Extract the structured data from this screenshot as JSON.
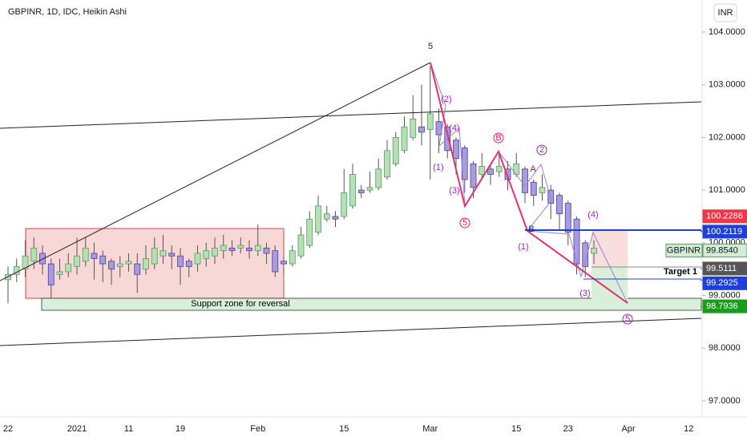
{
  "chart_data": {
    "type": "candlestick",
    "title": "GBPINR, 1D, IDC, Heikin Ashi",
    "currency_button": "INR",
    "categories": [
      "22",
      null,
      null,
      null,
      null,
      null,
      null,
      null,
      "2021",
      null,
      null,
      null,
      null,
      null,
      "11",
      null,
      null,
      null,
      null,
      null,
      "19",
      null,
      null,
      null,
      null,
      null,
      null,
      null,
      null,
      "Feb",
      null,
      null,
      null,
      null,
      null,
      null,
      null,
      null,
      null,
      "15",
      null,
      null,
      null,
      null,
      null,
      null,
      null,
      null,
      null,
      "Mar",
      null,
      null,
      null,
      null,
      null,
      null,
      null,
      null,
      null,
      "15",
      null,
      null,
      null,
      null,
      null,
      "23",
      null,
      null,
      null,
      null,
      null,
      null,
      "Apr",
      null,
      null,
      null,
      null,
      null,
      null,
      "12"
    ],
    "open": [
      99.3,
      99.4,
      99.5,
      99.65,
      99.8,
      99.6,
      99.4,
      99.45,
      99.55,
      99.65,
      99.8,
      99.75,
      99.65,
      99.55,
      99.6,
      99.6,
      99.5,
      99.6,
      99.75,
      99.8,
      99.75,
      99.65,
      99.6,
      99.7,
      99.75,
      99.85,
      99.9,
      99.9,
      99.9,
      99.85,
      99.9,
      99.85,
      99.65,
      99.6,
      99.75,
      99.95,
      100.2,
      100.45,
      100.5,
      100.5,
      100.7,
      101.0,
      101.0,
      101.05,
      101.25,
      101.5,
      101.75,
      102.0,
      102.2,
      102.15,
      102.3,
      102.2,
      101.95,
      101.8,
      101.5,
      101.3,
      101.4,
      101.35,
      101.4,
      101.3,
      101.4,
      101.15,
      100.95,
      101.0,
      100.9,
      100.75,
      100.45,
      100.0,
      99.8,
      null,
      null,
      null,
      null,
      null,
      null,
      null,
      null,
      null,
      null,
      null
    ],
    "high": [
      99.55,
      99.7,
      100.05,
      100.1,
      99.95,
      99.7,
      99.7,
      99.8,
      100.1,
      100.1,
      100.0,
      99.85,
      99.7,
      99.75,
      99.8,
      99.8,
      99.95,
      100.1,
      100.15,
      99.95,
      99.9,
      99.7,
      99.95,
      100.0,
      100.1,
      100.15,
      100.05,
      100.1,
      100.05,
      100.35,
      100.0,
      99.95,
      99.75,
      99.95,
      100.3,
      100.6,
      100.9,
      100.7,
      100.6,
      101.4,
      101.5,
      101.1,
      101.35,
      101.6,
      101.95,
      102.1,
      102.4,
      102.8,
      103.0,
      103.35,
      102.55,
      102.25,
      102.0,
      101.85,
      101.55,
      101.7,
      101.5,
      101.7,
      101.55,
      101.7,
      101.45,
      101.2,
      101.3,
      101.1,
      100.95,
      100.8,
      100.5,
      100.05,
      100.05,
      null,
      null,
      null,
      null,
      null,
      null,
      null,
      null,
      null,
      null,
      null
    ],
    "low": [
      98.85,
      99.25,
      99.35,
      99.5,
      99.4,
      98.95,
      99.3,
      99.35,
      99.4,
      99.55,
      99.3,
      99.25,
      99.2,
      99.35,
      99.45,
      99.05,
      99.4,
      99.5,
      99.6,
      99.5,
      99.2,
      99.35,
      99.45,
      99.55,
      99.6,
      99.7,
      99.75,
      99.8,
      99.7,
      99.75,
      99.6,
      99.35,
      99.4,
      99.55,
      99.7,
      99.9,
      100.15,
      100.4,
      100.3,
      100.45,
      100.65,
      100.85,
      100.95,
      101.0,
      101.2,
      101.45,
      101.7,
      101.95,
      101.85,
      101.2,
      101.7,
      101.6,
      101.3,
      100.95,
      100.85,
      101.2,
      101.1,
      101.25,
      101.0,
      101.25,
      100.75,
      100.7,
      100.8,
      100.45,
      100.25,
      99.95,
      99.4,
      99.35,
      99.6,
      null,
      null,
      null,
      null,
      null,
      null,
      null,
      null,
      null,
      null,
      null
    ],
    "close": [
      99.4,
      99.55,
      99.75,
      99.9,
      99.6,
      99.2,
      99.45,
      99.6,
      99.75,
      99.9,
      99.7,
      99.6,
      99.5,
      99.6,
      99.65,
      99.4,
      99.7,
      99.9,
      99.85,
      99.75,
      99.55,
      99.55,
      99.8,
      99.85,
      99.9,
      99.95,
      99.85,
      99.95,
      99.85,
      99.95,
      99.8,
      99.45,
      99.6,
      99.85,
      100.15,
      100.45,
      100.7,
      100.55,
      100.45,
      100.95,
      101.3,
      100.95,
      101.05,
      101.4,
      101.75,
      102.0,
      102.2,
      102.35,
      102.1,
      102.45,
      102.05,
      101.75,
      101.6,
      101.2,
      101.05,
      101.45,
      101.3,
      101.45,
      101.2,
      101.5,
      100.95,
      100.9,
      101.05,
      100.75,
      100.55,
      100.2,
      99.6,
      99.55,
      99.9,
      null,
      null,
      null,
      null,
      null,
      null,
      null,
      null,
      null,
      null,
      null
    ],
    "up_color": "#b5dfb5",
    "down_color": "#a99be0",
    "ylim": [
      96.694,
      104.609
    ],
    "yticks": [
      {
        "value": 104,
        "label": "104.0000"
      },
      {
        "value": 103,
        "label": "103.0000"
      },
      {
        "value": 102,
        "label": "102.0000"
      },
      {
        "value": 101,
        "label": "101.0000"
      },
      {
        "value": 100,
        "label": "100.0000"
      },
      {
        "value": 99,
        "label": "99.0000"
      },
      {
        "value": 98,
        "label": "98.0000"
      },
      {
        "value": 97,
        "label": "97.0000"
      }
    ],
    "price_lines": [
      {
        "value": 100.2286,
        "label": "100.2286",
        "color": "#f23645"
      },
      {
        "value": 100.2119,
        "label": "100.2119",
        "color": "#1e3fd8"
      },
      {
        "value": 99.854,
        "label": "99.8540",
        "name": "GBPINR",
        "color": "#d4ecd4"
      },
      {
        "value": 99.5111,
        "label": "99.5111",
        "color": "#555555"
      },
      {
        "value": 99.2925,
        "label": "99.2925",
        "color": "#1e3fd8"
      },
      {
        "value": 98.7936,
        "label": "98.7936",
        "color": "#1a9c1a"
      }
    ],
    "target_label": "Target 1",
    "support_label": "Support zone for reversal",
    "annotations": [
      {
        "text": "5",
        "color": "#222222"
      },
      {
        "text": "(2)",
        "color": "#9c27b0"
      },
      {
        "text": "(4)",
        "color": "#9c27b0"
      },
      {
        "text": "(1)",
        "color": "#9c27b0"
      },
      {
        "text": "(3)",
        "color": "#9c27b0"
      },
      {
        "text": "5",
        "color": "#e91e63",
        "circled": true
      },
      {
        "text": "B",
        "color": "#e91e63",
        "circled": true
      },
      {
        "text": "2",
        "color": "#9c27b0",
        "circled": true
      },
      {
        "text": "A",
        "color": "#b71c1c"
      },
      {
        "text": "B",
        "color": "#1a237e"
      },
      {
        "text": "(4)",
        "color": "#9c27b0"
      },
      {
        "text": "(1)",
        "color": "#9c27b0"
      },
      {
        "text": "(3)",
        "color": "#9c27b0"
      },
      {
        "text": "5",
        "color": "#9c27b0",
        "circled": true
      }
    ]
  }
}
